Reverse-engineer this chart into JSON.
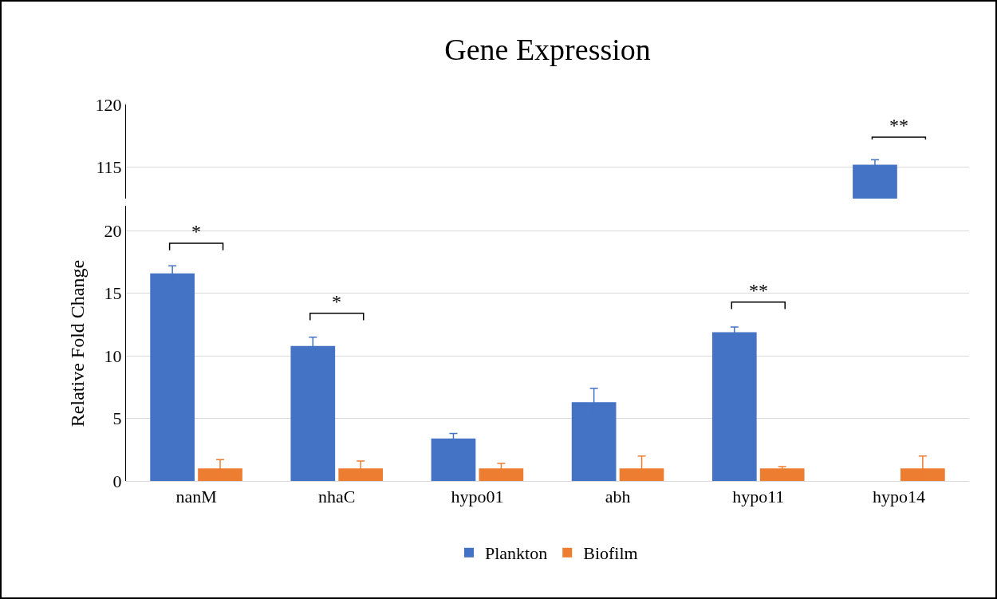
{
  "chart_data": [
    {
      "type": "bar",
      "title": "Gene Expression",
      "categories": [
        null,
        null,
        null,
        null,
        null,
        null
      ],
      "series": [
        {
          "color": "#4472c4",
          "values": [
            null,
            null,
            null,
            null,
            null,
            115.2
          ],
          "errors": [
            null,
            null,
            null,
            null,
            null,
            0.4
          ]
        },
        {
          "color": "#ed7d31",
          "values": [
            null,
            null,
            null,
            null,
            null,
            null
          ]
        }
      ],
      "ylim": [
        112.5,
        120
      ],
      "yticks": [
        115,
        120
      ],
      "grid": "y",
      "tick_labels": "y",
      "annotations": [
        "**"
      ]
    },
    {
      "type": "bar",
      "ylabel": "Relative Fold Change",
      "categories": [
        "nanM",
        "nhaC",
        "hypo01",
        "abh",
        "hypo11",
        "hypo14"
      ],
      "series": [
        {
          "name": "Plankton",
          "color": "#4472c4",
          "values": [
            16.6,
            10.8,
            3.4,
            6.3,
            11.9,
            null
          ],
          "errors": [
            0.6,
            0.7,
            0.4,
            1.1,
            0.4,
            null
          ]
        },
        {
          "name": "Biofilm",
          "color": "#ed7d31",
          "values": [
            1,
            1,
            1,
            1,
            1,
            1
          ],
          "errors": [
            0.7,
            0.6,
            0.4,
            1.0,
            0.15,
            1.0
          ]
        }
      ],
      "ylim": [
        0,
        22
      ],
      "yticks": [
        0,
        5,
        10,
        15,
        20
      ],
      "grid": "y",
      "legend": "bottom",
      "annotations": [
        "*",
        "*",
        "**"
      ]
    }
  ]
}
